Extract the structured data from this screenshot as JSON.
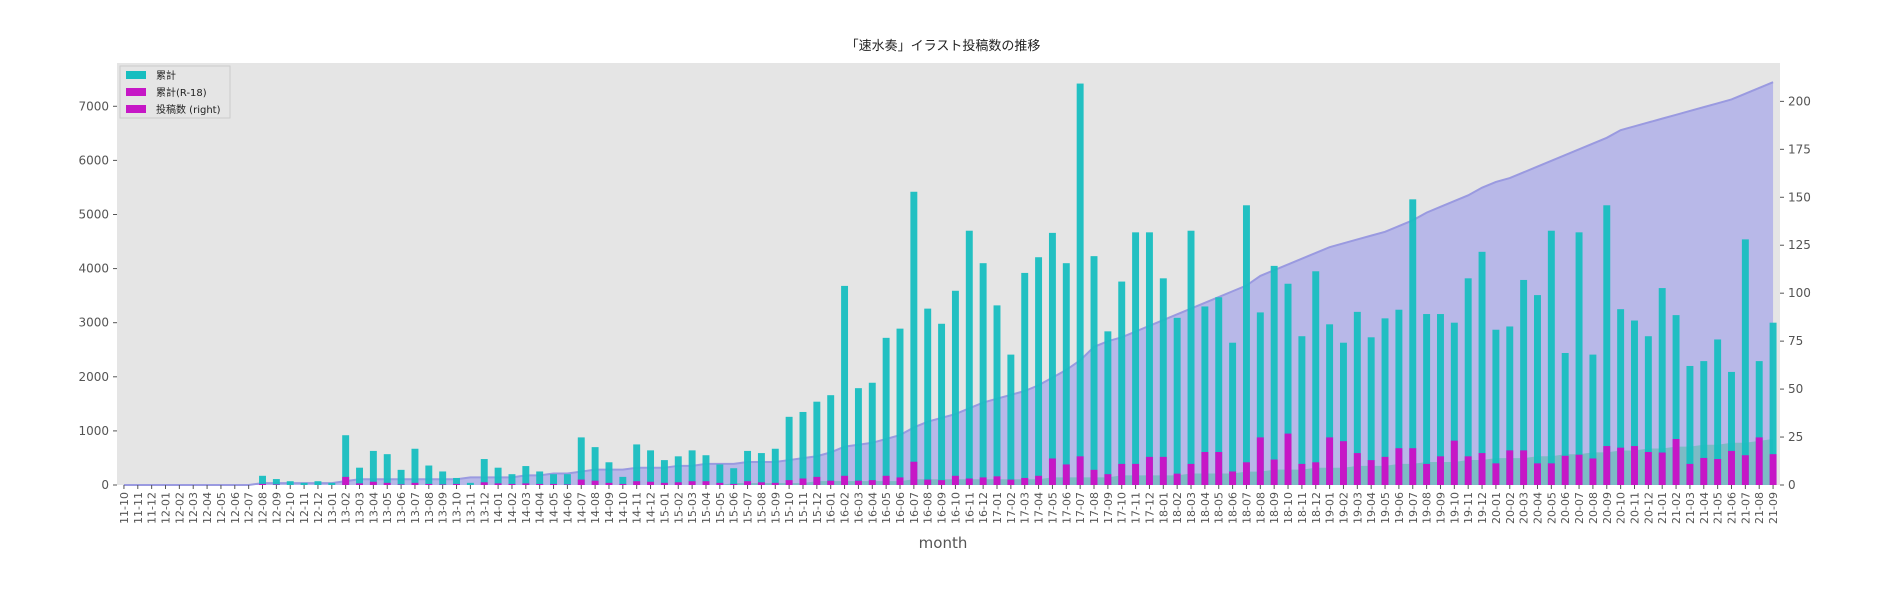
{
  "chart_data": {
    "type": "bar",
    "title": "「速水奏」イラスト投稿数の推移",
    "xlabel": "month",
    "ylabel": "",
    "ylim": [
      0,
      7800
    ],
    "y2lim": [
      0,
      220
    ],
    "yticks": [
      0,
      1000,
      2000,
      3000,
      4000,
      5000,
      6000,
      7000
    ],
    "y2ticks": [
      0,
      25,
      50,
      75,
      100,
      125,
      150,
      175,
      200
    ],
    "grid": false,
    "legend_position": "top-left",
    "colors": {
      "background": "#e5e5e5",
      "cumulative": "#17bec0",
      "cumulative_r18": "#c617c6",
      "posts_right": "#c617c6",
      "area": "#b3b3e8",
      "area_line": "#9a9ae0",
      "area_r18": "#4cbda8"
    },
    "categories": [
      "11-10",
      "11-11",
      "11-12",
      "12-01",
      "12-02",
      "12-03",
      "12-04",
      "12-05",
      "12-06",
      "12-07",
      "12-08",
      "12-09",
      "12-10",
      "12-11",
      "12-12",
      "13-01",
      "13-02",
      "13-03",
      "13-04",
      "13-05",
      "13-06",
      "13-07",
      "13-08",
      "13-09",
      "13-10",
      "13-11",
      "13-12",
      "14-01",
      "14-02",
      "14-03",
      "14-04",
      "14-05",
      "14-06",
      "14-07",
      "14-08",
      "14-09",
      "14-10",
      "14-11",
      "14-12",
      "15-01",
      "15-02",
      "15-03",
      "15-04",
      "15-05",
      "15-06",
      "15-07",
      "15-08",
      "15-09",
      "15-10",
      "15-11",
      "15-12",
      "16-01",
      "16-02",
      "16-03",
      "16-04",
      "16-05",
      "16-06",
      "16-07",
      "16-08",
      "16-09",
      "16-10",
      "16-11",
      "16-12",
      "17-01",
      "17-02",
      "17-03",
      "17-04",
      "17-05",
      "17-06",
      "17-07",
      "17-08",
      "17-09",
      "17-10",
      "17-11",
      "17-12",
      "18-01",
      "18-02",
      "18-03",
      "18-04",
      "18-05",
      "18-06",
      "18-07",
      "18-08",
      "18-09",
      "18-10",
      "18-11",
      "18-12",
      "19-01",
      "19-02",
      "19-03",
      "19-04",
      "19-05",
      "19-06",
      "19-07",
      "19-08",
      "19-09",
      "19-10",
      "19-11",
      "19-12",
      "20-01",
      "20-02",
      "20-03",
      "20-04",
      "20-05",
      "20-06",
      "20-07",
      "20-08",
      "20-09",
      "20-10",
      "20-11",
      "20-12",
      "21-01",
      "21-02",
      "21-03",
      "21-04",
      "21-05",
      "21-06",
      "21-07",
      "21-08",
      "21-09"
    ],
    "series": [
      {
        "name": "累計",
        "axis": "left",
        "values": [
          0,
          0,
          0,
          0,
          0,
          0,
          0,
          0,
          0,
          0,
          170,
          110,
          70,
          40,
          70,
          40,
          920,
          320,
          630,
          570,
          280,
          670,
          360,
          250,
          130,
          40,
          480,
          320,
          200,
          350,
          250,
          200,
          200,
          880,
          700,
          420,
          150,
          750,
          640,
          460,
          530,
          640,
          550,
          380,
          310,
          630,
          590,
          670,
          1260,
          1350,
          1540,
          1660,
          3680,
          1790,
          1890,
          2720,
          2890,
          5420,
          3260,
          2980,
          3590,
          4700,
          4100,
          3320,
          2410,
          3920,
          4210,
          4660,
          4100,
          7420,
          4230,
          2840,
          3760,
          4670,
          4670,
          3820,
          3090,
          4700,
          3300,
          3470,
          2630,
          5170,
          3190,
          4050,
          3720,
          2750,
          3950,
          2970,
          2630,
          3200,
          2730,
          3080,
          3240,
          5280,
          3160,
          3160,
          3000,
          3820,
          4310,
          2870,
          2930,
          3790,
          3510,
          4700,
          2440,
          4670,
          2410,
          5170,
          3250,
          3040,
          2750,
          3640,
          3140,
          2200,
          2290,
          2690,
          2090,
          4540,
          2290,
          3000
        ]
      },
      {
        "name": "累計(R-18)",
        "axis": "left",
        "values": [
          0,
          0,
          0,
          0,
          0,
          0,
          0,
          0,
          0,
          0,
          20,
          10,
          0,
          0,
          0,
          0,
          150,
          30,
          60,
          40,
          10,
          40,
          20,
          10,
          20,
          0,
          50,
          30,
          20,
          30,
          20,
          20,
          10,
          100,
          80,
          40,
          20,
          70,
          60,
          40,
          50,
          70,
          70,
          40,
          20,
          70,
          50,
          40,
          90,
          120,
          150,
          80,
          170,
          80,
          90,
          170,
          140,
          430,
          100,
          90,
          170,
          120,
          140,
          160,
          100,
          130,
          170,
          490,
          380,
          530,
          280,
          200,
          390,
          390,
          520,
          520,
          210,
          390,
          610,
          610,
          250,
          420,
          880,
          470,
          950,
          390,
          420,
          880,
          810,
          590,
          460,
          520,
          680,
          680,
          390,
          530,
          820,
          530,
          590,
          400,
          640,
          640,
          400,
          400,
          540,
          560,
          490,
          720,
          690,
          720,
          610,
          600,
          850,
          390,
          500,
          480,
          630,
          550,
          880,
          570
        ]
      },
      {
        "name": "投稿数 (right)",
        "axis": "right",
        "values": [
          0,
          0,
          0,
          0,
          0,
          0,
          0,
          0,
          0,
          0,
          1,
          1,
          1,
          1,
          1,
          1,
          2,
          3,
          3,
          3,
          3,
          3,
          3,
          3,
          3,
          4,
          4,
          4,
          4,
          5,
          5,
          6,
          6,
          7,
          8,
          8,
          8,
          9,
          9,
          9,
          10,
          10,
          11,
          11,
          11,
          12,
          12,
          12,
          13,
          14,
          15,
          17,
          20,
          21,
          22,
          24,
          26,
          30,
          33,
          35,
          37,
          40,
          43,
          45,
          47,
          49,
          52,
          56,
          60,
          65,
          72,
          75,
          77,
          80,
          83,
          86,
          89,
          92,
          95,
          98,
          101,
          104,
          109,
          112,
          115,
          118,
          121,
          124,
          126,
          128,
          130,
          132,
          135,
          138,
          142,
          145,
          148,
          151,
          155,
          158,
          160,
          163,
          166,
          169,
          172,
          175,
          178,
          181,
          185,
          187,
          189,
          191,
          193,
          195,
          197,
          199,
          201,
          204,
          207,
          210
        ]
      },
      {
        "name": "",
        "axis": "right",
        "values": [
          0,
          0,
          0,
          0,
          0,
          0,
          0,
          0,
          0,
          0,
          0,
          0,
          0,
          0,
          0,
          0,
          0,
          0,
          0,
          0,
          0,
          0,
          0,
          0,
          0,
          0,
          0,
          0,
          0,
          0,
          0,
          0,
          0,
          0,
          0,
          0,
          0,
          0,
          0,
          0,
          0,
          0,
          0,
          0,
          1,
          1,
          1,
          1,
          1,
          1,
          2,
          2,
          2,
          2,
          2,
          2,
          2,
          3,
          3,
          3,
          3,
          3,
          3,
          3,
          3,
          3,
          3,
          4,
          4,
          4,
          4,
          4,
          5,
          5,
          5,
          5,
          5,
          6,
          6,
          6,
          6,
          7,
          7,
          8,
          8,
          8,
          9,
          9,
          9,
          10,
          10,
          10,
          11,
          11,
          12,
          12,
          12,
          13,
          13,
          14,
          14,
          14,
          15,
          15,
          16,
          16,
          17,
          17,
          18,
          18,
          19,
          19,
          20,
          20,
          21,
          21,
          22,
          22,
          23,
          24
        ]
      }
    ]
  }
}
